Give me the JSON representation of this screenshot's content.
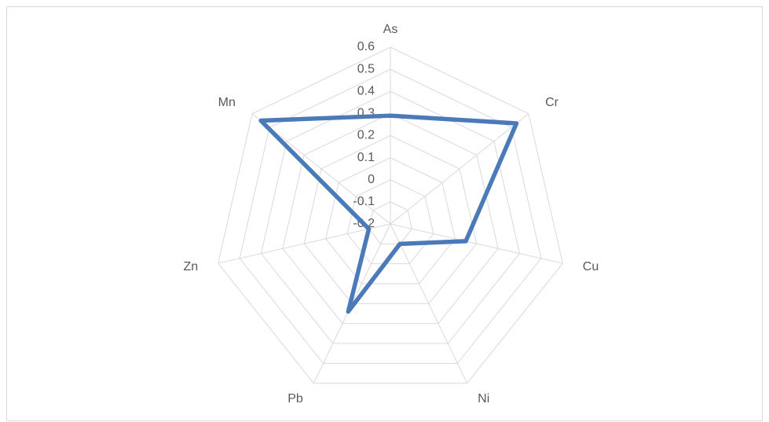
{
  "chart_data": {
    "type": "radar",
    "categories": [
      "As",
      "Cr",
      "Cu",
      "Ni",
      "Pb",
      "Zn",
      "Mn"
    ],
    "series": [
      {
        "color": "#4a7ab8",
        "values": [
          0.29,
          0.53,
          0.15,
          -0.1,
          0.24,
          -0.1,
          0.55
        ]
      }
    ],
    "ylim": [
      -0.2,
      0.6
    ],
    "yticks": [
      -0.2,
      -0.1,
      0,
      0.1,
      0.2,
      0.3,
      0.4,
      0.5,
      0.6
    ],
    "grid": true
  }
}
